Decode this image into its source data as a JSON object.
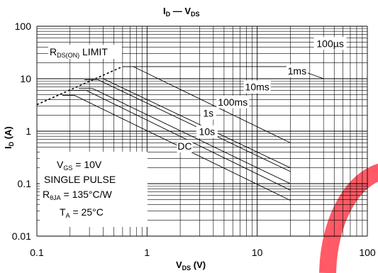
{
  "colors": {
    "watermark": "#ff5a66"
  },
  "chart_data": {
    "type": "line",
    "title": {
      "main": "I",
      "main_sub": "D",
      "dash": " — ",
      "second": "V",
      "second_sub": "DS"
    },
    "xaxis": {
      "scale": "log",
      "range": [
        0.1,
        100
      ],
      "title": {
        "main": "V",
        "sub": "DS",
        "unit": " (V)"
      },
      "tick_labels": [
        "0.1",
        "1",
        "10",
        "100"
      ]
    },
    "yaxis": {
      "scale": "log",
      "range": [
        0.01,
        100
      ],
      "title": {
        "main": "I",
        "sub": "D",
        "unit": " (A)"
      },
      "tick_labels": [
        "0.01",
        "0.1",
        "1",
        "10",
        "100"
      ]
    },
    "grid": true,
    "rds_limit": {
      "label_pre": "R",
      "label_sub": "DS(ON)",
      "label_post": " LIMIT",
      "points": [
        [
          0.1,
          3.2
        ],
        [
          0.6,
          17
        ]
      ]
    },
    "series": [
      {
        "name": "100µs",
        "points": [
          [
            0.6,
            17
          ],
          [
            0.75,
            17
          ],
          [
            20,
            17
          ],
          [
            40,
            10
          ]
        ]
      },
      {
        "name": "1ms",
        "points": [
          [
            0.6,
            17
          ],
          [
            0.75,
            17
          ],
          [
            20,
            0.6
          ]
        ]
      },
      {
        "name": "10ms",
        "points": [
          [
            0.4,
            10
          ],
          [
            20,
            0.2
          ]
        ]
      },
      {
        "name": "100ms",
        "points": [
          [
            0.27,
            9.5
          ],
          [
            0.36,
            9.5
          ],
          [
            20,
            0.17
          ]
        ]
      },
      {
        "name": "1s",
        "points": [
          [
            0.24,
            6.5
          ],
          [
            0.32,
            6.5
          ],
          [
            20,
            0.1
          ]
        ]
      },
      {
        "name": "10s",
        "points": [
          [
            0.2,
            6.0
          ],
          [
            0.28,
            6.0
          ],
          [
            20,
            0.075
          ]
        ]
      },
      {
        "name": "DC",
        "points": [
          [
            0.17,
            4.8
          ],
          [
            0.22,
            4.8
          ],
          [
            20,
            0.048
          ]
        ]
      }
    ],
    "curve_labels": [
      {
        "name": "100",
        "suffix": "µs",
        "x": 46,
        "y": 47
      },
      {
        "name": "1ms",
        "x": 23,
        "y": 14
      },
      {
        "name": "10ms",
        "x": 10,
        "y": 7.0
      },
      {
        "name": "100ms",
        "x": 6.0,
        "y": 3.6
      },
      {
        "name": "1s",
        "x": 3.6,
        "y": 2.2
      },
      {
        "name": "10s",
        "x": 3.5,
        "y": 0.98
      },
      {
        "name": "DC",
        "x": 2.2,
        "y": 0.52
      }
    ],
    "conditions": {
      "vgs_pre": "V",
      "vgs_sub": "GS",
      "vgs_post": " = 10V",
      "pulse": "SINGLE PULSE",
      "rth_pre": "R",
      "rth_sub": "θJA",
      "rth_post": " = 135°C/W",
      "ta_pre": "T",
      "ta_sub": "A",
      "ta_post": " = 25°C"
    }
  }
}
